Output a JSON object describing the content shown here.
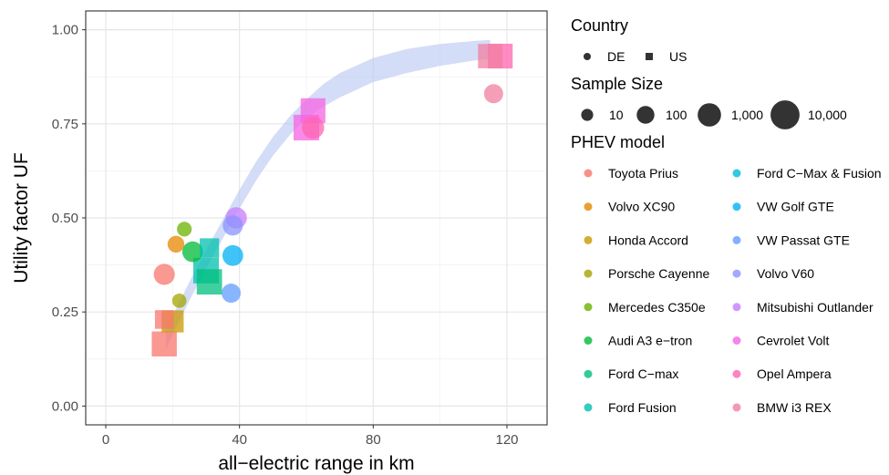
{
  "chart_data": {
    "type": "scatter",
    "title": "",
    "xlabel": "all−electric range in km",
    "ylabel": "Utility factor UF",
    "xlim": [
      -6,
      132
    ],
    "ylim": [
      -0.05,
      1.05
    ],
    "x_ticks": [
      0,
      40,
      80,
      120
    ],
    "x_tick_labels": [
      "0",
      "40",
      "80",
      "120"
    ],
    "y_ticks": [
      0,
      0.25,
      0.5,
      0.75,
      1
    ],
    "y_tick_labels": [
      "0.00",
      "0.25",
      "0.50",
      "0.75",
      "1.00"
    ],
    "grid": true,
    "legend_position": "right",
    "legends": {
      "country": {
        "title": "Country",
        "items": [
          {
            "label": "DE",
            "shape": "circle"
          },
          {
            "label": "US",
            "shape": "square"
          }
        ]
      },
      "sample_size": {
        "title": "Sample Size",
        "items": [
          {
            "label": "10",
            "n": 10
          },
          {
            "label": "100",
            "n": 100
          },
          {
            "label": "1,000",
            "n": 1000
          },
          {
            "label": "10,000",
            "n": 10000
          }
        ]
      },
      "model": {
        "title": "PHEV model",
        "items": [
          {
            "label": "Toyota Prius",
            "color": "#F8766D"
          },
          {
            "label": "Volvo XC90",
            "color": "#E58700"
          },
          {
            "label": "Honda Accord",
            "color": "#C99800"
          },
          {
            "label": "Porsche Cayenne",
            "color": "#A3A500"
          },
          {
            "label": "Mercedes C350e",
            "color": "#6BB100"
          },
          {
            "label": "Audi A3 e−tron",
            "color": "#00BA38"
          },
          {
            "label": "Ford C−max",
            "color": "#00BF7D"
          },
          {
            "label": "Ford Fusion",
            "color": "#00C0AF"
          },
          {
            "label": "Ford C−Max & Fusion",
            "color": "#00BCD8"
          },
          {
            "label": "VW Golf GTE",
            "color": "#00B0F6"
          },
          {
            "label": "VW Passat GTE",
            "color": "#619CFF"
          },
          {
            "label": "Volvo V60",
            "color": "#8B93FF"
          },
          {
            "label": "Mitsubishi Outlander",
            "color": "#C77CFF"
          },
          {
            "label": "Cevrolet Volt",
            "color": "#F564E3"
          },
          {
            "label": "Opel Ampera",
            "color": "#FF64B0"
          },
          {
            "label": "BMW i3 REX",
            "color": "#F27EA0"
          }
        ]
      }
    },
    "smooth_band": {
      "color": "#B8C6F2",
      "x": [
        18,
        20,
        25,
        30,
        35,
        40,
        45,
        50,
        55,
        60,
        65,
        70,
        80,
        90,
        100,
        110,
        115
      ],
      "y": [
        0.18,
        0.215,
        0.305,
        0.39,
        0.47,
        0.55,
        0.625,
        0.69,
        0.745,
        0.79,
        0.825,
        0.852,
        0.893,
        0.917,
        0.933,
        0.944,
        0.948
      ],
      "upper": [
        0.21,
        0.24,
        0.33,
        0.415,
        0.495,
        0.575,
        0.65,
        0.715,
        0.77,
        0.815,
        0.855,
        0.885,
        0.925,
        0.949,
        0.962,
        0.97,
        0.973
      ],
      "lower": [
        0.15,
        0.19,
        0.28,
        0.365,
        0.445,
        0.525,
        0.6,
        0.665,
        0.72,
        0.765,
        0.795,
        0.82,
        0.861,
        0.885,
        0.904,
        0.918,
        0.923
      ]
    },
    "points": [
      {
        "model": "Toyota Prius",
        "country": "DE",
        "x": 17.5,
        "y": 0.35,
        "n": 400
      },
      {
        "model": "Toyota Prius",
        "country": "US",
        "x": 17.5,
        "y": 0.23,
        "n": 150
      },
      {
        "model": "Toyota Prius",
        "country": "US",
        "x": 17.5,
        "y": 0.165,
        "n": 2000
      },
      {
        "model": "Volvo XC90",
        "country": "DE",
        "x": 21,
        "y": 0.43,
        "n": 70
      },
      {
        "model": "Honda Accord",
        "country": "US",
        "x": 20,
        "y": 0.225,
        "n": 600
      },
      {
        "model": "Porsche Cayenne",
        "country": "DE",
        "x": 22,
        "y": 0.28,
        "n": 25
      },
      {
        "model": "Mercedes C350e",
        "country": "DE",
        "x": 23.5,
        "y": 0.47,
        "n": 30
      },
      {
        "model": "Audi A3 e−tron",
        "country": "DE",
        "x": 26,
        "y": 0.41,
        "n": 350
      },
      {
        "model": "Ford C−max",
        "country": "US",
        "x": 31,
        "y": 0.33,
        "n": 2200
      },
      {
        "model": "Ford Fusion",
        "country": "US",
        "x": 30,
        "y": 0.36,
        "n": 2500
      },
      {
        "model": "Ford Fusion",
        "country": "US",
        "x": 31,
        "y": 0.42,
        "n": 200
      },
      {
        "model": "VW Golf GTE",
        "country": "DE",
        "x": 38,
        "y": 0.4,
        "n": 350
      },
      {
        "model": "VW Passat GTE",
        "country": "DE",
        "x": 37.5,
        "y": 0.3,
        "n": 180
      },
      {
        "model": "Volvo V60",
        "country": "DE",
        "x": 38,
        "y": 0.48,
        "n": 280
      },
      {
        "model": "Mitsubishi Outlander",
        "country": "DE",
        "x": 39,
        "y": 0.5,
        "n": 450
      },
      {
        "model": "Cevrolet Volt",
        "country": "US",
        "x": 60,
        "y": 0.74,
        "n": 2500
      },
      {
        "model": "Cevrolet Volt",
        "country": "US",
        "x": 62,
        "y": 0.785,
        "n": 1800
      },
      {
        "model": "Opel Ampera",
        "country": "DE",
        "x": 62,
        "y": 0.74,
        "n": 650
      },
      {
        "model": "BMW i3 REX",
        "country": "US",
        "x": 115,
        "y": 0.93,
        "n": 1500
      },
      {
        "model": "Opel Ampera",
        "country": "US",
        "x": 118,
        "y": 0.93,
        "n": 1800
      },
      {
        "model": "BMW i3 REX",
        "country": "DE",
        "x": 116,
        "y": 0.83,
        "n": 180
      }
    ]
  }
}
